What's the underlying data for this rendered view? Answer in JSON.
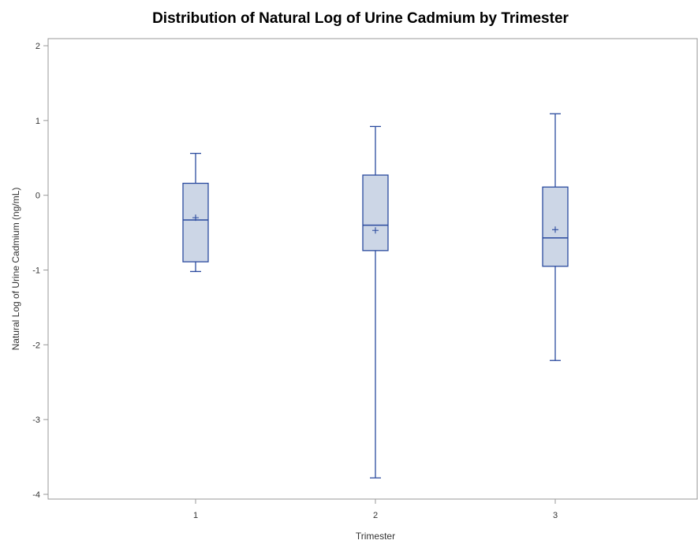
{
  "chart_data": {
    "type": "boxplot",
    "title": "Distribution of Natural Log of Urine Cadmium by Trimester",
    "xlabel": "Trimester",
    "ylabel": "Natural Log of Urine Cadmium (ng/mL)",
    "ylim": [
      -4,
      2
    ],
    "yticks": [
      "2",
      "1",
      "0",
      "-1",
      "-2",
      "-3",
      "-4"
    ],
    "categories": [
      "1",
      "2",
      "3"
    ],
    "boxes": [
      {
        "category": "1",
        "min": -1.02,
        "q1": -0.89,
        "median": -0.33,
        "mean": -0.3,
        "q3": 0.16,
        "max": 0.56
      },
      {
        "category": "2",
        "min": -3.78,
        "q1": -0.74,
        "median": -0.4,
        "mean": -0.47,
        "q3": 0.27,
        "max": 0.92
      },
      {
        "category": "3",
        "min": -2.21,
        "q1": -0.95,
        "median": -0.57,
        "mean": -0.46,
        "q3": 0.11,
        "max": 1.09
      }
    ],
    "grid": false,
    "colors": {
      "box_fill": "#ccd6e6",
      "box_stroke": "#2a4a9e",
      "axis": "#999999"
    }
  }
}
